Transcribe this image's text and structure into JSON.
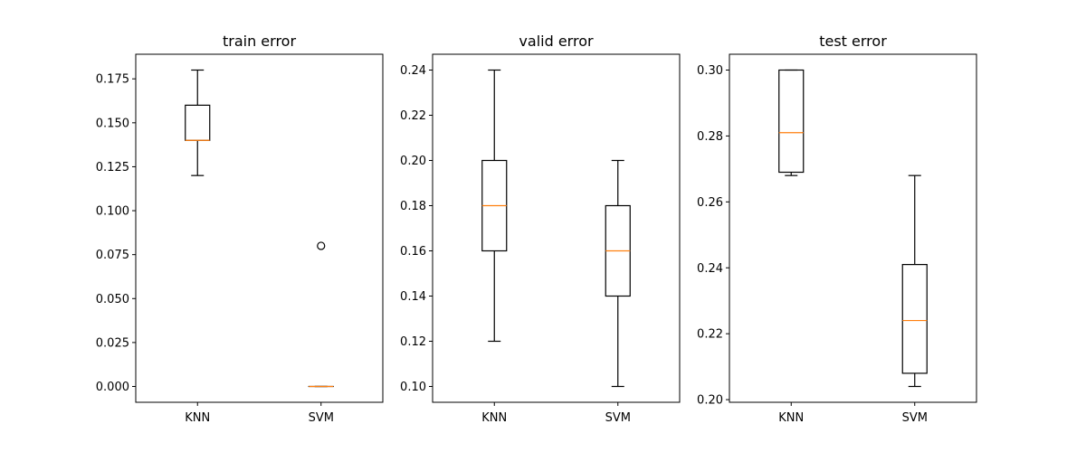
{
  "chart_data": [
    {
      "type": "box",
      "title": "train error",
      "categories": [
        "KNN",
        "SVM"
      ],
      "ylim": [
        -0.009,
        0.189
      ],
      "yticks": [
        "0.000",
        "0.025",
        "0.050",
        "0.075",
        "0.100",
        "0.125",
        "0.150",
        "0.175"
      ],
      "boxes": [
        {
          "name": "KNN",
          "whisker_low": 0.12,
          "q1": 0.14,
          "median": 0.14,
          "q3": 0.16,
          "whisker_high": 0.18,
          "fliers": []
        },
        {
          "name": "SVM",
          "whisker_low": 0.0,
          "q1": 0.0,
          "median": 0.0,
          "q3": 0.0,
          "whisker_high": 0.0,
          "fliers": [
            0.08
          ]
        }
      ]
    },
    {
      "type": "box",
      "title": "valid error",
      "categories": [
        "KNN",
        "SVM"
      ],
      "ylim": [
        0.093,
        0.247
      ],
      "yticks": [
        "0.10",
        "0.12",
        "0.14",
        "0.16",
        "0.18",
        "0.20",
        "0.22",
        "0.24"
      ],
      "boxes": [
        {
          "name": "KNN",
          "whisker_low": 0.12,
          "q1": 0.16,
          "median": 0.18,
          "q3": 0.2,
          "whisker_high": 0.24,
          "fliers": []
        },
        {
          "name": "SVM",
          "whisker_low": 0.1,
          "q1": 0.14,
          "median": 0.16,
          "q3": 0.18,
          "whisker_high": 0.2,
          "fliers": []
        }
      ]
    },
    {
      "type": "box",
      "title": "test error",
      "categories": [
        "KNN",
        "SVM"
      ],
      "ylim": [
        0.1992,
        0.3048
      ],
      "yticks": [
        "0.20",
        "0.22",
        "0.24",
        "0.26",
        "0.28",
        "0.30"
      ],
      "boxes": [
        {
          "name": "KNN",
          "whisker_low": 0.268,
          "q1": 0.269,
          "median": 0.281,
          "q3": 0.3,
          "whisker_high": 0.3,
          "fliers": []
        },
        {
          "name": "SVM",
          "whisker_low": 0.204,
          "q1": 0.208,
          "median": 0.224,
          "q3": 0.241,
          "whisker_high": 0.268,
          "fliers": []
        }
      ]
    }
  ],
  "colors": {
    "median": "#ff7f0e",
    "box": "#000000",
    "background": "#ffffff"
  }
}
